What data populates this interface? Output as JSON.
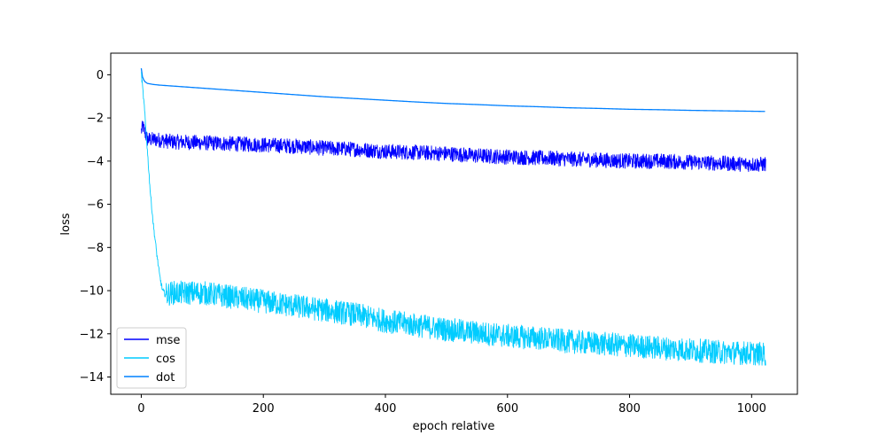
{
  "chart_data": {
    "type": "line",
    "title": "",
    "xlabel": "epoch relative",
    "ylabel": "loss",
    "xlim": [
      -50,
      1075
    ],
    "ylim": [
      -14.8,
      1.0
    ],
    "xticks": [
      0,
      200,
      400,
      600,
      800,
      1000
    ],
    "xtick_labels": [
      "0",
      "200",
      "400",
      "600",
      "800",
      "1000"
    ],
    "yticks": [
      0,
      -2,
      -4,
      -6,
      -8,
      -10,
      -12,
      -14
    ],
    "ytick_labels": [
      "0",
      "−2",
      "−4",
      "−6",
      "−8",
      "−10",
      "−12",
      "−14"
    ],
    "grid": false,
    "legend_position": "lower-left",
    "series": [
      {
        "name": "mse",
        "color": "#0000ff",
        "x": [
          0,
          3,
          10,
          25,
          50,
          100,
          150,
          200,
          250,
          300,
          350,
          400,
          450,
          500,
          550,
          600,
          650,
          700,
          750,
          800,
          850,
          900,
          950,
          1000,
          1023
        ],
        "y": [
          -2.6,
          -2.4,
          -3.0,
          -3.0,
          -3.1,
          -3.15,
          -3.2,
          -3.25,
          -3.3,
          -3.4,
          -3.45,
          -3.55,
          -3.6,
          -3.65,
          -3.75,
          -3.8,
          -3.85,
          -3.9,
          -3.95,
          -4.0,
          -4.0,
          -4.05,
          -4.1,
          -4.15,
          -4.15
        ],
        "noise": 0.35
      },
      {
        "name": "cos",
        "color": "#00ccff",
        "x": [
          0,
          5,
          10,
          15,
          20,
          25,
          30,
          35,
          40,
          50,
          75,
          100,
          150,
          200,
          250,
          300,
          350,
          400,
          450,
          500,
          550,
          600,
          650,
          700,
          750,
          800,
          850,
          900,
          950,
          1000,
          1023
        ],
        "y": [
          0.1,
          -1.5,
          -3.5,
          -5.5,
          -7.0,
          -8.2,
          -9.3,
          -10.0,
          -10.2,
          -10.1,
          -10.1,
          -10.1,
          -10.3,
          -10.5,
          -10.7,
          -10.9,
          -11.1,
          -11.4,
          -11.6,
          -11.8,
          -11.95,
          -12.1,
          -12.2,
          -12.35,
          -12.45,
          -12.55,
          -12.65,
          -12.75,
          -12.85,
          -12.9,
          -12.95
        ],
        "noise": 0.55
      },
      {
        "name": "dot",
        "color": "#0080ff",
        "x": [
          0,
          2,
          5,
          10,
          20,
          30,
          50,
          100,
          150,
          200,
          250,
          300,
          350,
          400,
          450,
          500,
          550,
          600,
          650,
          700,
          750,
          800,
          850,
          900,
          950,
          1000,
          1023
        ],
        "y": [
          0.3,
          -0.1,
          -0.3,
          -0.4,
          -0.45,
          -0.48,
          -0.52,
          -0.62,
          -0.72,
          -0.82,
          -0.92,
          -1.02,
          -1.1,
          -1.18,
          -1.26,
          -1.33,
          -1.38,
          -1.44,
          -1.48,
          -1.53,
          -1.56,
          -1.6,
          -1.62,
          -1.65,
          -1.67,
          -1.69,
          -1.7
        ],
        "noise": 0.0
      }
    ]
  }
}
